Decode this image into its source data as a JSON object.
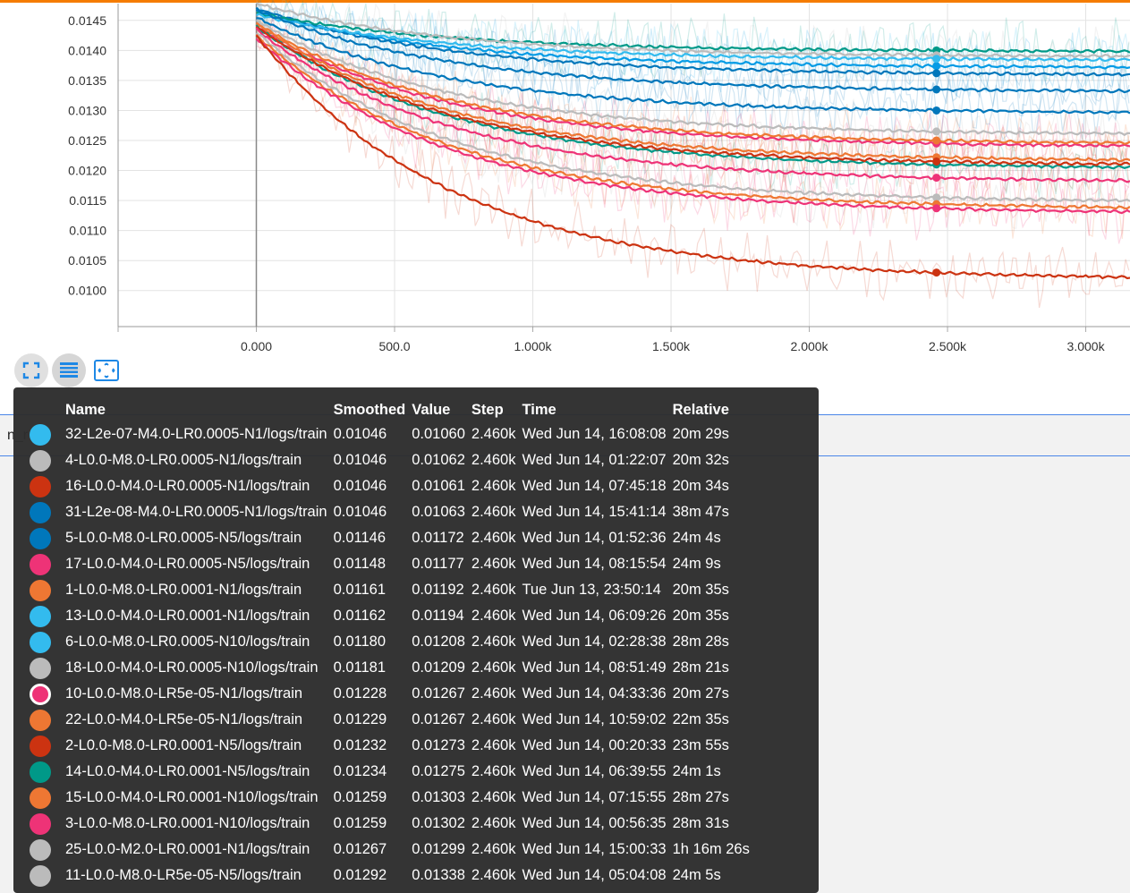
{
  "chart_data": {
    "type": "line",
    "x_ticks": [
      "0.000",
      "500.0",
      "1.000k",
      "1.500k",
      "2.000k",
      "2.500k",
      "3.000k"
    ],
    "x_tick_values": [
      0,
      500,
      1000,
      1500,
      2000,
      2500,
      3000
    ],
    "y_ticks": [
      "0.0145",
      "0.0140",
      "0.0135",
      "0.0130",
      "0.0125",
      "0.0120",
      "0.0115",
      "0.0110",
      "0.0105",
      "0.0100"
    ],
    "y_tick_values": [
      0.0145,
      0.014,
      0.0135,
      0.013,
      0.0125,
      0.012,
      0.0115,
      0.011,
      0.0105,
      0.01
    ],
    "xlim": [
      -500,
      3160
    ],
    "ylim": [
      0.0094,
      0.01478
    ],
    "grid": true,
    "cursor_step": 2460,
    "series": [
      {
        "color": "#039be5",
        "end_value": 0.01374,
        "start_value": 0.01465
      },
      {
        "color": "#0077bb",
        "end_value": 0.01362,
        "start_value": 0.0147
      },
      {
        "color": "#009988",
        "end_value": 0.014,
        "start_value": 0.01462
      },
      {
        "color": "#bbbbbb",
        "end_value": 0.01392,
        "start_value": 0.01478
      },
      {
        "color": "#33bbee",
        "end_value": 0.01386,
        "start_value": 0.0146
      },
      {
        "color": "#0077bb",
        "end_value": 0.01335,
        "start_value": 0.01468
      },
      {
        "color": "#0077bb",
        "end_value": 0.013,
        "start_value": 0.01455
      },
      {
        "color": "#bbbbbb",
        "end_value": 0.01265,
        "start_value": 0.0145
      },
      {
        "color": "#ee3377",
        "end_value": 0.01245,
        "start_value": 0.0144
      },
      {
        "color": "#ee7733",
        "end_value": 0.0125,
        "start_value": 0.01445
      },
      {
        "color": "#ee7733",
        "end_value": 0.01222,
        "start_value": 0.01445
      },
      {
        "color": "#009988",
        "end_value": 0.0121,
        "start_value": 0.0144
      },
      {
        "color": "#cc3311",
        "end_value": 0.01215,
        "start_value": 0.0144
      },
      {
        "color": "#ee3377",
        "end_value": 0.01188,
        "start_value": 0.01435
      },
      {
        "color": "#bbbbbb",
        "end_value": 0.01155,
        "start_value": 0.0143
      },
      {
        "color": "#ee7733",
        "end_value": 0.01144,
        "start_value": 0.01425
      },
      {
        "color": "#ee3377",
        "end_value": 0.01137,
        "start_value": 0.0142
      },
      {
        "color": "#cc3311",
        "end_value": 0.0103,
        "start_value": 0.01425
      }
    ]
  },
  "behind_text": "n_r",
  "controls": {
    "fit_icon": "fit-domain-icon",
    "log_icon": "toggle-y-log-icon",
    "reset_icon": "reset-zoom-icon"
  },
  "tooltip": {
    "headers": {
      "name": "Name",
      "smoothed": "Smoothed",
      "value": "Value",
      "step": "Step",
      "time": "Time",
      "relative": "Relative"
    },
    "rows": [
      {
        "color": "#33bbee",
        "name": "32-L2e-07-M4.0-LR0.0005-N1/logs/train",
        "smoothed": "0.01046",
        "value": "0.01060",
        "step": "2.460k",
        "time": "Wed Jun 14, 16:08:08",
        "relative": "20m 29s"
      },
      {
        "color": "#bbbbbb",
        "name": "4-L0.0-M8.0-LR0.0005-N1/logs/train",
        "smoothed": "0.01046",
        "value": "0.01062",
        "step": "2.460k",
        "time": "Wed Jun 14, 01:22:07",
        "relative": "20m 32s"
      },
      {
        "color": "#cc3311",
        "name": "16-L0.0-M4.0-LR0.0005-N1/logs/train",
        "smoothed": "0.01046",
        "value": "0.01061",
        "step": "2.460k",
        "time": "Wed Jun 14, 07:45:18",
        "relative": "20m 34s"
      },
      {
        "color": "#0077bb",
        "name": "31-L2e-08-M4.0-LR0.0005-N1/logs/train",
        "smoothed": "0.01046",
        "value": "0.01063",
        "step": "2.460k",
        "time": "Wed Jun 14, 15:41:14",
        "relative": "38m 47s"
      },
      {
        "color": "#0077bb",
        "name": "5-L0.0-M8.0-LR0.0005-N5/logs/train",
        "smoothed": "0.01146",
        "value": "0.01172",
        "step": "2.460k",
        "time": "Wed Jun 14, 01:52:36",
        "relative": "24m 4s"
      },
      {
        "color": "#ee3377",
        "name": "17-L0.0-M4.0-LR0.0005-N5/logs/train",
        "smoothed": "0.01148",
        "value": "0.01177",
        "step": "2.460k",
        "time": "Wed Jun 14, 08:15:54",
        "relative": "24m 9s"
      },
      {
        "color": "#ee7733",
        "name": "1-L0.0-M8.0-LR0.0001-N1/logs/train",
        "smoothed": "0.01161",
        "value": "0.01192",
        "step": "2.460k",
        "time": "Tue Jun 13, 23:50:14",
        "relative": "20m 35s"
      },
      {
        "color": "#33bbee",
        "name": "13-L0.0-M4.0-LR0.0001-N1/logs/train",
        "smoothed": "0.01162",
        "value": "0.01194",
        "step": "2.460k",
        "time": "Wed Jun 14, 06:09:26",
        "relative": "20m 35s"
      },
      {
        "color": "#33bbee",
        "name": "6-L0.0-M8.0-LR0.0005-N10/logs/train",
        "smoothed": "0.01180",
        "value": "0.01208",
        "step": "2.460k",
        "time": "Wed Jun 14, 02:28:38",
        "relative": "28m 28s"
      },
      {
        "color": "#bbbbbb",
        "name": "18-L0.0-M4.0-LR0.0005-N10/logs/train",
        "smoothed": "0.01181",
        "value": "0.01209",
        "step": "2.460k",
        "time": "Wed Jun 14, 08:51:49",
        "relative": "28m 21s"
      },
      {
        "color": "#ee3377",
        "highlight": true,
        "name": "10-L0.0-M8.0-LR5e-05-N1/logs/train",
        "smoothed": "0.01228",
        "value": "0.01267",
        "step": "2.460k",
        "time": "Wed Jun 14, 04:33:36",
        "relative": "20m 27s"
      },
      {
        "color": "#ee7733",
        "name": "22-L0.0-M4.0-LR5e-05-N1/logs/train",
        "smoothed": "0.01229",
        "value": "0.01267",
        "step": "2.460k",
        "time": "Wed Jun 14, 10:59:02",
        "relative": "22m 35s"
      },
      {
        "color": "#cc3311",
        "name": "2-L0.0-M8.0-LR0.0001-N5/logs/train",
        "smoothed": "0.01232",
        "value": "0.01273",
        "step": "2.460k",
        "time": "Wed Jun 14, 00:20:33",
        "relative": "23m 55s"
      },
      {
        "color": "#009988",
        "name": "14-L0.0-M4.0-LR0.0001-N5/logs/train",
        "smoothed": "0.01234",
        "value": "0.01275",
        "step": "2.460k",
        "time": "Wed Jun 14, 06:39:55",
        "relative": "24m 1s"
      },
      {
        "color": "#ee7733",
        "name": "15-L0.0-M4.0-LR0.0001-N10/logs/train",
        "smoothed": "0.01259",
        "value": "0.01303",
        "step": "2.460k",
        "time": "Wed Jun 14, 07:15:55",
        "relative": "28m 27s"
      },
      {
        "color": "#ee3377",
        "name": "3-L0.0-M8.0-LR0.0001-N10/logs/train",
        "smoothed": "0.01259",
        "value": "0.01302",
        "step": "2.460k",
        "time": "Wed Jun 14, 00:56:35",
        "relative": "28m 31s"
      },
      {
        "color": "#bbbbbb",
        "name": "25-L0.0-M2.0-LR0.0001-N1/logs/train",
        "smoothed": "0.01267",
        "value": "0.01299",
        "step": "2.460k",
        "time": "Wed Jun 14, 15:00:33",
        "relative": "1h 16m 26s"
      },
      {
        "color": "#bbbbbb",
        "name": "11-L0.0-M8.0-LR5e-05-N5/logs/train",
        "smoothed": "0.01292",
        "value": "0.01338",
        "step": "2.460k",
        "time": "Wed Jun 14, 05:04:08",
        "relative": "24m 5s"
      }
    ]
  }
}
